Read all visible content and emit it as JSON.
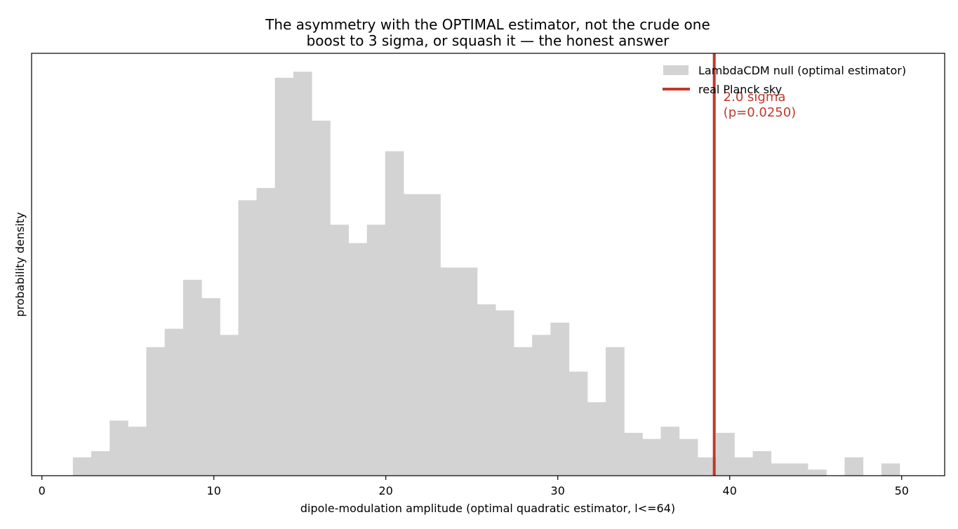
{
  "chart_data": {
    "type": "bar",
    "title": "The asymmetry with the OPTIMAL estimator, not the crude one",
    "subtitle": "boost to 3 sigma, or squash it — the honest answer",
    "xlabel": "dipole-modulation amplitude  (optimal quadratic estimator, l<=64)",
    "ylabel": "probability density",
    "xlim": [
      -0.6,
      52.5
    ],
    "ylim": [
      0,
      69
    ],
    "xticks": [
      0,
      10,
      20,
      30,
      40,
      50
    ],
    "yticks_shown": false,
    "grid": false,
    "legend": {
      "placement": "top-right",
      "entries": [
        {
          "label": "LambdaCDM null (optimal estimator)",
          "kind": "patch",
          "color": "#d3d3d3"
        },
        {
          "label": "real Planck sky",
          "kind": "line",
          "color": "#c0392b"
        }
      ]
    },
    "series": [
      {
        "name": "LambdaCDM null (optimal estimator)",
        "color": "#d3d3d3",
        "bin_edges": [
          1.8,
          2.87,
          3.94,
          5.0,
          6.07,
          7.14,
          8.21,
          9.28,
          10.35,
          11.42,
          12.48,
          13.55,
          14.62,
          15.69,
          16.76,
          17.83,
          18.9,
          19.96,
          21.03,
          22.1,
          23.17,
          24.24,
          25.31,
          26.38,
          27.44,
          28.51,
          29.58,
          30.65,
          31.72,
          32.79,
          33.86,
          34.92,
          35.99,
          37.06,
          38.13,
          39.2,
          40.27,
          41.34,
          42.4,
          43.47,
          44.54,
          45.61,
          46.68,
          47.75,
          48.82,
          49.88
        ],
        "values": [
          3,
          4,
          9,
          8,
          21,
          24,
          32,
          29,
          23,
          45,
          47,
          65,
          66,
          58,
          41,
          38,
          41,
          53,
          46,
          46,
          34,
          34,
          28,
          27,
          21,
          23,
          25,
          17,
          12,
          21,
          7,
          6,
          8,
          6,
          3,
          7,
          3,
          4,
          2,
          2,
          1,
          0,
          3,
          0,
          2
        ]
      }
    ],
    "reference_line": {
      "label": "real Planck sky",
      "x": 39.1,
      "color": "#c0392b",
      "annotation_line1": "2.0 sigma",
      "annotation_line2": "(p=0.0250)"
    }
  }
}
